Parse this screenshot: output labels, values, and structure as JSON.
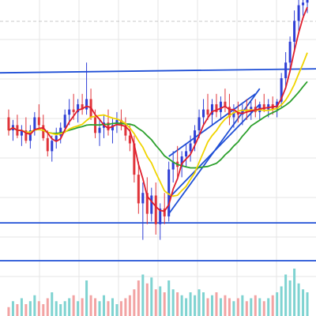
{
  "chart_data": {
    "type": "candlestick",
    "title": "",
    "xlabel": "",
    "ylabel": "",
    "grid": true,
    "legend": "none",
    "colors": {
      "up": "#2f3fd6",
      "down": "#e0343a",
      "ma_fast": "#e01e2d",
      "ma_mid": "#f0d400",
      "ma_slow": "#2ca02c",
      "trendline": "#1f4fd6",
      "volume_up": "#7fd3d1",
      "volume_down": "#f2a3a3",
      "grid": "#e6e6e6",
      "dashed_top": "#c8c8c8"
    },
    "ylim": [
      0,
      100
    ],
    "candles": [
      {
        "x": 0,
        "o": 55,
        "h": 58,
        "l": 48,
        "c": 50
      },
      {
        "x": 1,
        "o": 50,
        "h": 54,
        "l": 46,
        "c": 52
      },
      {
        "x": 2,
        "o": 52,
        "h": 56,
        "l": 47,
        "c": 48
      },
      {
        "x": 3,
        "o": 48,
        "h": 52,
        "l": 44,
        "c": 50
      },
      {
        "x": 4,
        "o": 50,
        "h": 55,
        "l": 45,
        "c": 46
      },
      {
        "x": 5,
        "o": 46,
        "h": 52,
        "l": 43,
        "c": 50
      },
      {
        "x": 6,
        "o": 50,
        "h": 57,
        "l": 48,
        "c": 55
      },
      {
        "x": 7,
        "o": 55,
        "h": 60,
        "l": 50,
        "c": 52
      },
      {
        "x": 8,
        "o": 52,
        "h": 56,
        "l": 46,
        "c": 47
      },
      {
        "x": 9,
        "o": 47,
        "h": 50,
        "l": 40,
        "c": 42
      },
      {
        "x": 10,
        "o": 42,
        "h": 48,
        "l": 38,
        "c": 46
      },
      {
        "x": 11,
        "o": 46,
        "h": 51,
        "l": 43,
        "c": 48
      },
      {
        "x": 12,
        "o": 48,
        "h": 53,
        "l": 45,
        "c": 51
      },
      {
        "x": 13,
        "o": 51,
        "h": 58,
        "l": 49,
        "c": 56
      },
      {
        "x": 14,
        "o": 56,
        "h": 62,
        "l": 52,
        "c": 58
      },
      {
        "x": 15,
        "o": 58,
        "h": 64,
        "l": 54,
        "c": 57
      },
      {
        "x": 16,
        "o": 57,
        "h": 62,
        "l": 53,
        "c": 60
      },
      {
        "x": 17,
        "o": 60,
        "h": 64,
        "l": 56,
        "c": 58
      },
      {
        "x": 18,
        "o": 58,
        "h": 76,
        "l": 56,
        "c": 62
      },
      {
        "x": 19,
        "o": 62,
        "h": 66,
        "l": 54,
        "c": 55
      },
      {
        "x": 20,
        "o": 55,
        "h": 58,
        "l": 47,
        "c": 49
      },
      {
        "x": 21,
        "o": 49,
        "h": 54,
        "l": 44,
        "c": 51
      },
      {
        "x": 22,
        "o": 51,
        "h": 56,
        "l": 47,
        "c": 53
      },
      {
        "x": 23,
        "o": 53,
        "h": 58,
        "l": 48,
        "c": 50
      },
      {
        "x": 24,
        "o": 50,
        "h": 55,
        "l": 45,
        "c": 52
      },
      {
        "x": 25,
        "o": 52,
        "h": 57,
        "l": 49,
        "c": 54
      },
      {
        "x": 26,
        "o": 54,
        "h": 58,
        "l": 50,
        "c": 52
      },
      {
        "x": 27,
        "o": 52,
        "h": 55,
        "l": 46,
        "c": 48
      },
      {
        "x": 28,
        "o": 48,
        "h": 52,
        "l": 42,
        "c": 45
      },
      {
        "x": 29,
        "o": 45,
        "h": 48,
        "l": 30,
        "c": 33
      },
      {
        "x": 30,
        "o": 33,
        "h": 38,
        "l": 18,
        "c": 22
      },
      {
        "x": 31,
        "o": 22,
        "h": 30,
        "l": 8,
        "c": 26
      },
      {
        "x": 32,
        "o": 26,
        "h": 32,
        "l": 14,
        "c": 18
      },
      {
        "x": 33,
        "o": 18,
        "h": 28,
        "l": 15,
        "c": 25
      },
      {
        "x": 34,
        "o": 25,
        "h": 30,
        "l": 10,
        "c": 14
      },
      {
        "x": 35,
        "o": 14,
        "h": 22,
        "l": 8,
        "c": 20
      },
      {
        "x": 36,
        "o": 20,
        "h": 26,
        "l": 14,
        "c": 17
      },
      {
        "x": 37,
        "o": 17,
        "h": 38,
        "l": 15,
        "c": 35
      },
      {
        "x": 38,
        "o": 35,
        "h": 42,
        "l": 30,
        "c": 38
      },
      {
        "x": 39,
        "o": 38,
        "h": 44,
        "l": 32,
        "c": 36
      },
      {
        "x": 40,
        "o": 36,
        "h": 42,
        "l": 32,
        "c": 40
      },
      {
        "x": 41,
        "o": 40,
        "h": 45,
        "l": 36,
        "c": 42
      },
      {
        "x": 42,
        "o": 42,
        "h": 48,
        "l": 38,
        "c": 45
      },
      {
        "x": 43,
        "o": 45,
        "h": 52,
        "l": 42,
        "c": 50
      },
      {
        "x": 44,
        "o": 50,
        "h": 58,
        "l": 47,
        "c": 55
      },
      {
        "x": 45,
        "o": 55,
        "h": 62,
        "l": 52,
        "c": 58
      },
      {
        "x": 46,
        "o": 58,
        "h": 64,
        "l": 54,
        "c": 56
      },
      {
        "x": 47,
        "o": 56,
        "h": 62,
        "l": 52,
        "c": 60
      },
      {
        "x": 48,
        "o": 60,
        "h": 64,
        "l": 55,
        "c": 57
      },
      {
        "x": 49,
        "o": 57,
        "h": 63,
        "l": 54,
        "c": 61
      },
      {
        "x": 50,
        "o": 61,
        "h": 66,
        "l": 57,
        "c": 59
      },
      {
        "x": 51,
        "o": 59,
        "h": 64,
        "l": 52,
        "c": 55
      },
      {
        "x": 52,
        "o": 55,
        "h": 60,
        "l": 51,
        "c": 57
      },
      {
        "x": 53,
        "o": 57,
        "h": 61,
        "l": 53,
        "c": 56
      },
      {
        "x": 54,
        "o": 56,
        "h": 60,
        "l": 52,
        "c": 58
      },
      {
        "x": 55,
        "o": 58,
        "h": 62,
        "l": 54,
        "c": 57
      },
      {
        "x": 56,
        "o": 57,
        "h": 61,
        "l": 54,
        "c": 59
      },
      {
        "x": 57,
        "o": 59,
        "h": 62,
        "l": 55,
        "c": 57
      },
      {
        "x": 58,
        "o": 57,
        "h": 61,
        "l": 54,
        "c": 60
      },
      {
        "x": 59,
        "o": 60,
        "h": 64,
        "l": 57,
        "c": 58
      },
      {
        "x": 60,
        "o": 58,
        "h": 62,
        "l": 55,
        "c": 60
      },
      {
        "x": 61,
        "o": 60,
        "h": 63,
        "l": 56,
        "c": 58
      },
      {
        "x": 62,
        "o": 58,
        "h": 62,
        "l": 55,
        "c": 61
      },
      {
        "x": 63,
        "o": 61,
        "h": 72,
        "l": 59,
        "c": 70
      },
      {
        "x": 64,
        "o": 70,
        "h": 80,
        "l": 66,
        "c": 76
      },
      {
        "x": 65,
        "o": 76,
        "h": 86,
        "l": 72,
        "c": 84
      },
      {
        "x": 66,
        "o": 84,
        "h": 96,
        "l": 80,
        "c": 92
      },
      {
        "x": 67,
        "o": 92,
        "h": 100,
        "l": 88,
        "c": 98
      },
      {
        "x": 68,
        "o": 98,
        "h": 100,
        "l": 94,
        "c": 99
      },
      {
        "x": 69,
        "o": 99,
        "h": 100,
        "l": 95,
        "c": 100
      }
    ],
    "volume": [
      3,
      5,
      4,
      6,
      4,
      5,
      7,
      5,
      4,
      6,
      8,
      5,
      4,
      5,
      6,
      7,
      5,
      6,
      12,
      7,
      6,
      5,
      7,
      5,
      6,
      4,
      5,
      6,
      7,
      9,
      12,
      14,
      11,
      13,
      9,
      10,
      8,
      12,
      9,
      8,
      7,
      6,
      8,
      7,
      9,
      8,
      6,
      7,
      8,
      6,
      7,
      6,
      5,
      6,
      7,
      5,
      6,
      7,
      6,
      5,
      6,
      7,
      8,
      10,
      14,
      12,
      16,
      11,
      9,
      8
    ],
    "trendlines": [
      {
        "x1": -5,
        "y1": 72.0,
        "x2": 90,
        "y2": 74.0
      },
      {
        "x1": -5,
        "y1": 14.5,
        "x2": 90,
        "y2": 14.5
      },
      {
        "x1": -5,
        "y1": 0.0,
        "x2": 90,
        "y2": 0.0
      },
      {
        "x1": 37,
        "y1": 40,
        "x2": 57,
        "y2": 64
      },
      {
        "x1": 37,
        "y1": 18,
        "x2": 58,
        "y2": 66
      },
      {
        "x1": 37,
        "y1": 24,
        "x2": 58,
        "y2": 60
      }
    ]
  }
}
